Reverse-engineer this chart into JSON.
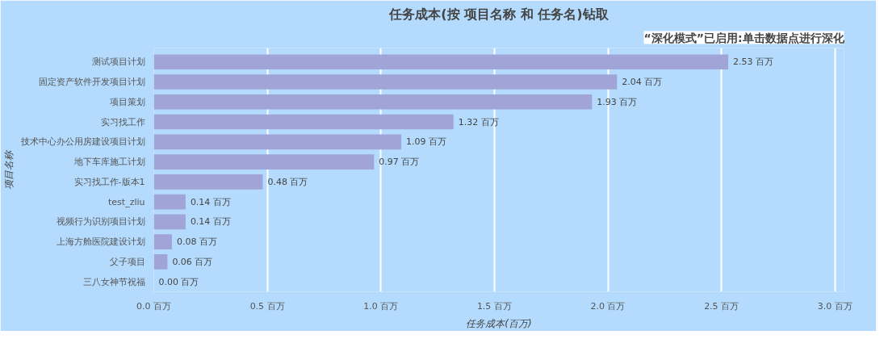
{
  "chart_data": {
    "type": "bar",
    "orientation": "horizontal",
    "title": "任务成本(按 项目名称 和 任务名)钻取",
    "xlabel": "任务成本(百万)",
    "ylabel": "项目名称",
    "categories": [
      "测试项目计划",
      "固定资产软件开发项目计划",
      "项目策划",
      "实习找工作",
      "技术中心办公用房建设项目计划",
      "地下车库施工计划",
      "实习找工作-版本1",
      "test_zliu",
      "视频行为识别项目计划",
      "上海方舱医院建设计划",
      "父子项目",
      "三八女神节祝福"
    ],
    "values": [
      2.53,
      2.04,
      1.93,
      1.32,
      1.09,
      0.97,
      0.48,
      0.14,
      0.14,
      0.08,
      0.06,
      0.0
    ],
    "value_labels": [
      "2.53 百万",
      "2.04 百万",
      "1.93 百万",
      "1.32 百万",
      "1.09 百万",
      "0.97 百万",
      "0.48 百万",
      "0.14 百万",
      "0.14 百万",
      "0.08 百万",
      "0.06 百万",
      "0.00 百万"
    ],
    "color": "#a0a4d6",
    "xlim": [
      0,
      3.04
    ],
    "xticks": [
      {
        "value": 0,
        "label": "0.0 百万"
      },
      {
        "value": 0.5,
        "label": "0.5 百万"
      },
      {
        "value": 1.0,
        "label": "1.0 百万"
      },
      {
        "value": 1.5,
        "label": "1.5 百万"
      },
      {
        "value": 2.0,
        "label": "2.0 百万"
      },
      {
        "value": 2.5,
        "label": "2.5 百万"
      },
      {
        "value": 3.0,
        "label": "3.0 百万"
      }
    ],
    "grid": "x",
    "annotations": [
      "“深化模式”已启用:单击数据点进行深化"
    ]
  }
}
